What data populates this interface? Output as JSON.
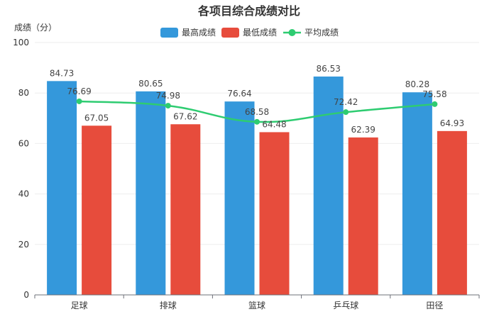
{
  "chart_data": {
    "type": "bar",
    "title": "各项目综合成绩对比",
    "ylabel": "成绩（分）",
    "xlabel": "",
    "ylim": [
      0,
      100
    ],
    "yticks": [
      0,
      20,
      40,
      60,
      80,
      100
    ],
    "categories": [
      "足球",
      "排球",
      "篮球",
      "乒乓球",
      "田径"
    ],
    "series": [
      {
        "name": "最高成绩",
        "kind": "bar",
        "color": "#3498DB",
        "values": [
          84.73,
          80.65,
          76.64,
          86.53,
          80.28
        ]
      },
      {
        "name": "最低成绩",
        "kind": "bar",
        "color": "#E74C3C",
        "values": [
          67.05,
          67.62,
          64.48,
          62.39,
          64.93
        ]
      },
      {
        "name": "平均成绩",
        "kind": "line",
        "color": "#2ECC71",
        "values": [
          76.69,
          74.98,
          68.58,
          72.42,
          75.58
        ]
      }
    ],
    "legend_position": "top-center",
    "grid": true
  }
}
